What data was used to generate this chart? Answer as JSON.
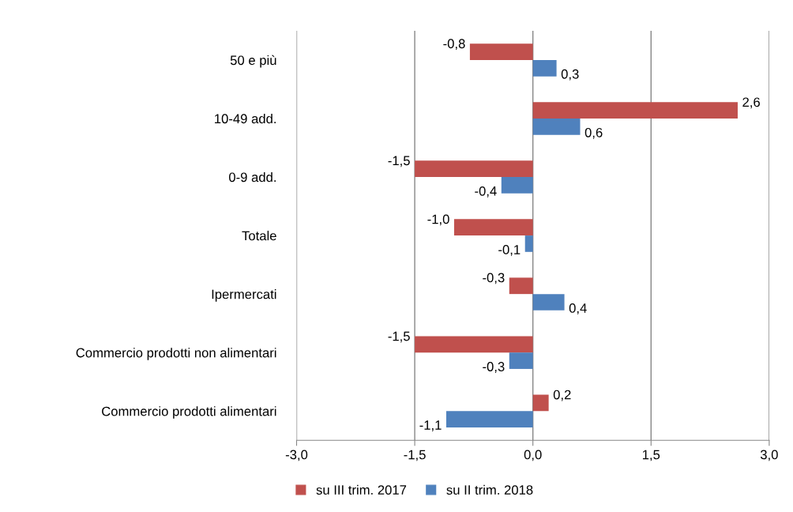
{
  "chart_data": {
    "type": "bar",
    "orientation": "horizontal",
    "categories": [
      "50 e più",
      "10-49 add.",
      "0-9 add.",
      "Totale",
      "Ipermercati",
      "Commercio prodotti non alimentari",
      "Commercio prodotti alimentari"
    ],
    "series": [
      {
        "name": "su III trim. 2017",
        "color": "#c0504d",
        "values": [
          -0.8,
          2.6,
          -1.5,
          -1.0,
          -0.3,
          -1.5,
          0.2
        ],
        "value_labels": [
          "-0,8",
          "2,6",
          "-1,5",
          "-1,0",
          "-0,3",
          "-1,5",
          "0,2"
        ]
      },
      {
        "name": "su II trim. 2018",
        "color": "#4f81bd",
        "values": [
          0.3,
          0.6,
          -0.4,
          -0.1,
          0.4,
          -0.3,
          -1.1
        ],
        "value_labels": [
          "0,3",
          "0,6",
          "-0,4",
          "-0,1",
          "0,4",
          "-0,3",
          "-1,1"
        ]
      }
    ],
    "xlim": [
      -3,
      3
    ],
    "xticks": [
      {
        "value": -3,
        "label": "-3,0"
      },
      {
        "value": -1.5,
        "label": "-1,5"
      },
      {
        "value": 0,
        "label": "0,0"
      },
      {
        "value": 1.5,
        "label": "1,5"
      },
      {
        "value": 3,
        "label": "3,0"
      }
    ],
    "grid": "x",
    "legend": "bottom"
  }
}
